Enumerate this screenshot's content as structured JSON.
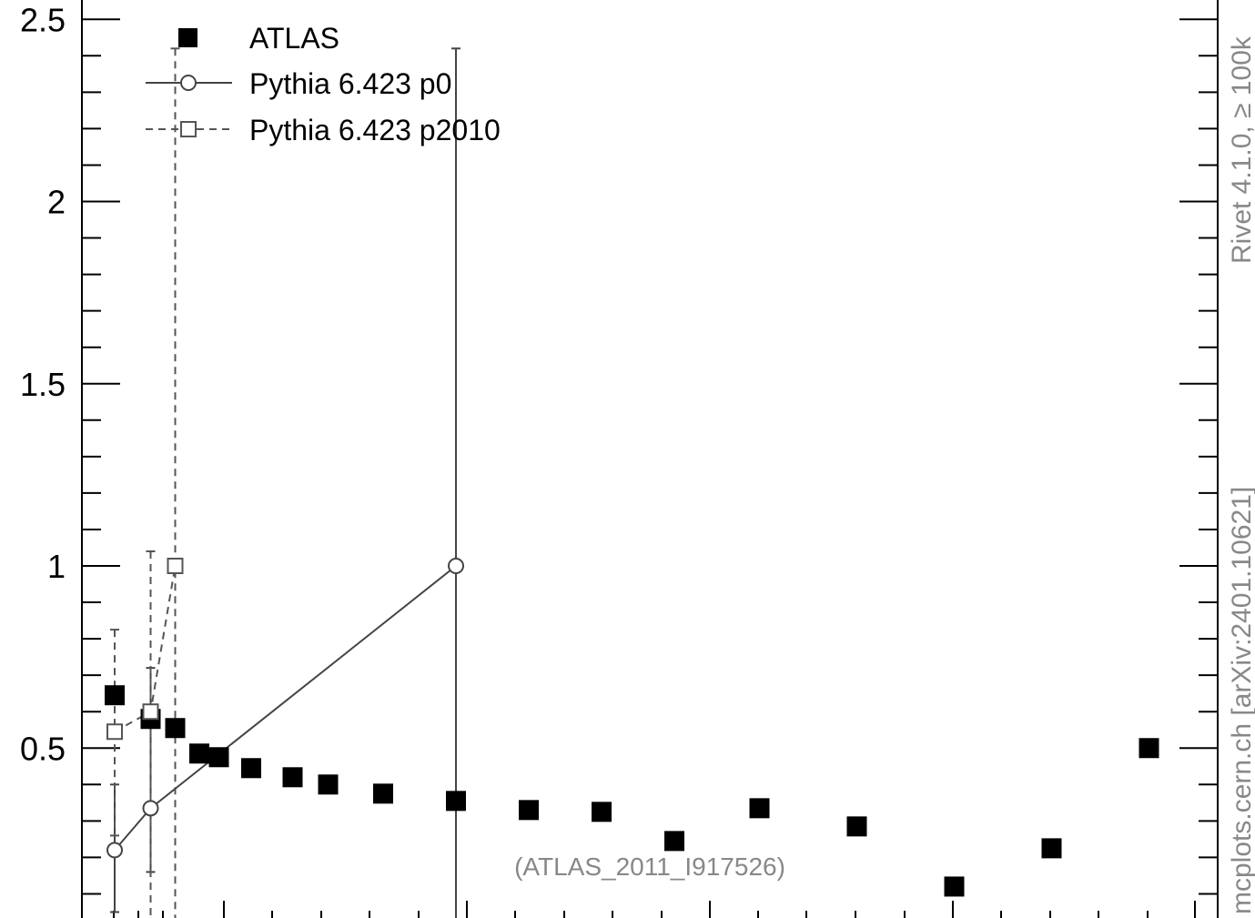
{
  "chart_data": {
    "type": "scatter",
    "title": "",
    "xlabel": "",
    "ylabel": "",
    "ylim": [
      0.1,
      2.55
    ],
    "y_ticks": [
      "2.5",
      "2",
      "1.5",
      "1",
      "0.5"
    ],
    "legend": {
      "placement": "top-left"
    },
    "series": [
      {
        "name": "ATLAS",
        "marker": "filled-square",
        "color": "#000000",
        "points": [
          {
            "xbin": 0.5,
            "y": 0.645
          },
          {
            "xbin": 1.5,
            "y": 0.58
          },
          {
            "xbin": 2.5,
            "y": 0.555
          },
          {
            "xbin": 3.5,
            "y": 0.485
          },
          {
            "xbin": 4.5,
            "y": 0.475
          },
          {
            "xbin": 6.0,
            "y": 0.445
          },
          {
            "xbin": 7.5,
            "y": 0.42
          },
          {
            "xbin": 9.0,
            "y": 0.4
          },
          {
            "xbin": 11.25,
            "y": 0.375
          },
          {
            "xbin": 14.25,
            "y": 0.355
          },
          {
            "xbin": 17.25,
            "y": 0.33
          },
          {
            "xbin": 20.25,
            "y": 0.325
          },
          {
            "xbin": 23.25,
            "y": 0.245
          },
          {
            "xbin": 27.0,
            "y": 0.335
          },
          {
            "xbin": 31.0,
            "y": 0.285
          },
          {
            "xbin": 35.0,
            "y": 0.12
          },
          {
            "xbin": 39.0,
            "y": 0.225
          },
          {
            "xbin": 43.0,
            "y": 0.5
          }
        ]
      },
      {
        "name": "Pythia 6.423 p0",
        "marker": "open-circle",
        "line": "solid",
        "color": "#444444",
        "points": [
          {
            "xbin": 0.5,
            "y": 0.22,
            "ylo": 0.05,
            "yhi": 0.4
          },
          {
            "xbin": 1.5,
            "y": 0.335,
            "ylo": 0.16,
            "yhi": 0.72
          },
          {
            "xbin": 14.25,
            "y": 1.0,
            "ylo": 0.0,
            "yhi": 2.42
          }
        ]
      },
      {
        "name": "Pythia 6.423 p2010",
        "marker": "open-square",
        "line": "dashed",
        "color": "#555555",
        "points": [
          {
            "xbin": 0.5,
            "y": 0.545,
            "ylo": 0.26,
            "yhi": 0.825
          },
          {
            "xbin": 1.5,
            "y": 0.6,
            "ylo": 0.0,
            "yhi": 1.04
          },
          {
            "xbin": 2.5,
            "y": 1.0,
            "ylo": 0.0,
            "yhi": 2.42
          }
        ]
      }
    ],
    "annotation": "(ATLAS_2011_I917526)",
    "side_labels": {
      "top": "Rivet 4.1.0, ≥ 100k",
      "bottom": "mcplots.cern.ch [arXiv:2401.10621]"
    }
  }
}
